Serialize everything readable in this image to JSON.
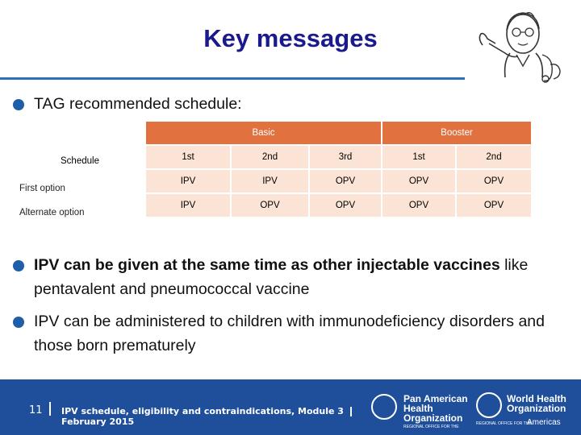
{
  "title": "Key messages",
  "bullets": [
    {
      "text": "TAG recommended schedule:"
    },
    {
      "strong": "IPV can be given at the same time as other injectable vaccines",
      "rest": " like pentavalent and pneumococcal vaccine"
    },
    {
      "text": "IPV can be administered to children with immunodeficiency disorders and those born prematurely"
    }
  ],
  "schedule": {
    "row_header": "Schedule",
    "group_basic": "Basic",
    "group_booster": "Booster",
    "doses": [
      "1st",
      "2nd",
      "3rd",
      "1st",
      "2nd"
    ],
    "rows": [
      {
        "label": "First option",
        "values": [
          "IPV",
          "IPV",
          "OPV",
          "OPV",
          "OPV"
        ]
      },
      {
        "label": "Alternate option",
        "values": [
          "IPV",
          "OPV",
          "OPV",
          "OPV",
          "OPV"
        ]
      }
    ]
  },
  "footer": {
    "page": "11",
    "text": "IPV schedule, eligibility and contraindications, Module 3",
    "date": "February 2015",
    "paho": [
      "Pan American",
      "Health",
      "Organization"
    ],
    "paho_sub": "REGIONAL OFFICE FOR THE",
    "who": [
      "World Health",
      "Organization"
    ],
    "who_sub": "REGIONAL OFFICE FOR THE",
    "who_region": "Americas"
  },
  "colors": {
    "title": "#1a1a8c",
    "accent": "#e1713f",
    "cell": "#fbe4d6",
    "footer": "#1f4f9a",
    "bullet": "#1f5ea8"
  }
}
